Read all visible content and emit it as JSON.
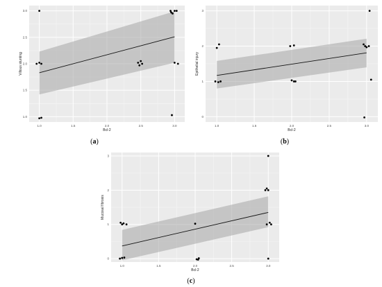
{
  "panels": [
    {
      "label_open": "(",
      "label_letter": "a",
      "label_close": ")"
    },
    {
      "label_open": "(",
      "label_letter": "b",
      "label_close": ")"
    },
    {
      "label_open": "(",
      "label_letter": "c",
      "label_close": ")"
    }
  ],
  "chart_data": [
    {
      "type": "scatter",
      "title": "",
      "xlabel": "Bcl-2",
      "ylabel": "Villous stunting",
      "xlim": [
        0.85,
        3.15
      ],
      "ylim": [
        0.9,
        3.1
      ],
      "xticks": [
        "1.0",
        "1.5",
        "2.0",
        "2.5",
        "3.0"
      ],
      "yticks": [
        "1.0",
        "1.5",
        "2.0",
        "2.5",
        "3.0"
      ],
      "grid": true,
      "points": [
        {
          "x": 1.0,
          "y": 3.0
        },
        {
          "x": 0.96,
          "y": 2.0
        },
        {
          "x": 1.0,
          "y": 2.02
        },
        {
          "x": 1.03,
          "y": 2.0
        },
        {
          "x": 1.0,
          "y": 0.97
        },
        {
          "x": 1.03,
          "y": 0.98
        },
        {
          "x": 2.46,
          "y": 2.02
        },
        {
          "x": 2.5,
          "y": 2.05
        },
        {
          "x": 2.48,
          "y": 1.97
        },
        {
          "x": 2.52,
          "y": 2.0
        },
        {
          "x": 2.94,
          "y": 3.0
        },
        {
          "x": 2.97,
          "y": 2.95
        },
        {
          "x": 3.0,
          "y": 3.0
        },
        {
          "x": 3.03,
          "y": 3.0
        },
        {
          "x": 2.95,
          "y": 2.97
        },
        {
          "x": 3.0,
          "y": 2.02
        },
        {
          "x": 3.05,
          "y": 2.0
        },
        {
          "x": 2.96,
          "y": 1.03
        }
      ],
      "fit_line": {
        "x": [
          1.0,
          3.0
        ],
        "y": [
          1.83,
          2.51
        ]
      },
      "ci_band": {
        "x": [
          1.0,
          3.0
        ],
        "lower": [
          1.42,
          2.02
        ],
        "upper": [
          2.23,
          2.99
        ]
      }
    },
    {
      "type": "scatter",
      "title": "",
      "xlabel": "Bcl-2",
      "ylabel": "Epithelial injury",
      "xlim": [
        0.85,
        3.15
      ],
      "ylim": [
        -0.15,
        3.15
      ],
      "xticks": [
        "1.0",
        "1.5",
        "2.0",
        "2.5",
        "3.0"
      ],
      "yticks": [
        "0",
        "1",
        "2",
        "3"
      ],
      "grid": true,
      "points": [
        {
          "x": 0.98,
          "y": 1.0
        },
        {
          "x": 1.02,
          "y": 0.98
        },
        {
          "x": 1.0,
          "y": 1.95
        },
        {
          "x": 1.03,
          "y": 2.05
        },
        {
          "x": 1.05,
          "y": 1.0
        },
        {
          "x": 1.98,
          "y": 2.0
        },
        {
          "x": 2.03,
          "y": 2.02
        },
        {
          "x": 2.0,
          "y": 1.03
        },
        {
          "x": 2.03,
          "y": 1.0
        },
        {
          "x": 2.05,
          "y": 1.0
        },
        {
          "x": 2.96,
          "y": 2.05
        },
        {
          "x": 2.98,
          "y": 2.0
        },
        {
          "x": 3.0,
          "y": 1.97
        },
        {
          "x": 3.03,
          "y": 2.0
        },
        {
          "x": 3.04,
          "y": 3.0
        },
        {
          "x": 3.06,
          "y": 1.05
        },
        {
          "x": 2.97,
          "y": -0.02
        }
      ],
      "fit_line": {
        "x": [
          1.0,
          3.0
        ],
        "y": [
          1.17,
          1.81
        ]
      },
      "ci_band": {
        "x": [
          1.0,
          3.0
        ],
        "lower": [
          0.8,
          1.4
        ],
        "upper": [
          1.58,
          2.21
        ]
      }
    },
    {
      "type": "scatter",
      "title": "",
      "xlabel": "Bcl-2",
      "ylabel": "Mucosal fibrosis",
      "xlim": [
        0.85,
        3.15
      ],
      "ylim": [
        -0.1,
        3.1
      ],
      "xticks": [
        "1.0",
        "1.5",
        "2.0",
        "2.5",
        "3.0"
      ],
      "yticks": [
        "0",
        "1",
        "2",
        "3"
      ],
      "grid": true,
      "points": [
        {
          "x": 0.97,
          "y": 0.0
        },
        {
          "x": 1.0,
          "y": 0.02
        },
        {
          "x": 1.03,
          "y": 0.03
        },
        {
          "x": 0.98,
          "y": 1.05
        },
        {
          "x": 1.0,
          "y": 1.0
        },
        {
          "x": 1.02,
          "y": 1.03
        },
        {
          "x": 1.06,
          "y": 1.0
        },
        {
          "x": 2.0,
          "y": 1.02
        },
        {
          "x": 2.02,
          "y": -0.02
        },
        {
          "x": 2.05,
          "y": 0.01
        },
        {
          "x": 2.04,
          "y": -0.03
        },
        {
          "x": 2.96,
          "y": 2.0
        },
        {
          "x": 2.98,
          "y": 2.05
        },
        {
          "x": 3.0,
          "y": 2.0
        },
        {
          "x": 3.0,
          "y": 3.0
        },
        {
          "x": 2.98,
          "y": 1.0
        },
        {
          "x": 3.02,
          "y": 1.05
        },
        {
          "x": 3.04,
          "y": 1.0
        },
        {
          "x": 3.0,
          "y": 0.0
        }
      ],
      "fit_line": {
        "x": [
          1.0,
          3.0
        ],
        "y": [
          0.37,
          1.35
        ]
      },
      "ci_band": {
        "x": [
          1.0,
          3.0
        ],
        "lower": [
          -0.05,
          0.92
        ],
        "upper": [
          0.84,
          1.82
        ]
      }
    }
  ]
}
